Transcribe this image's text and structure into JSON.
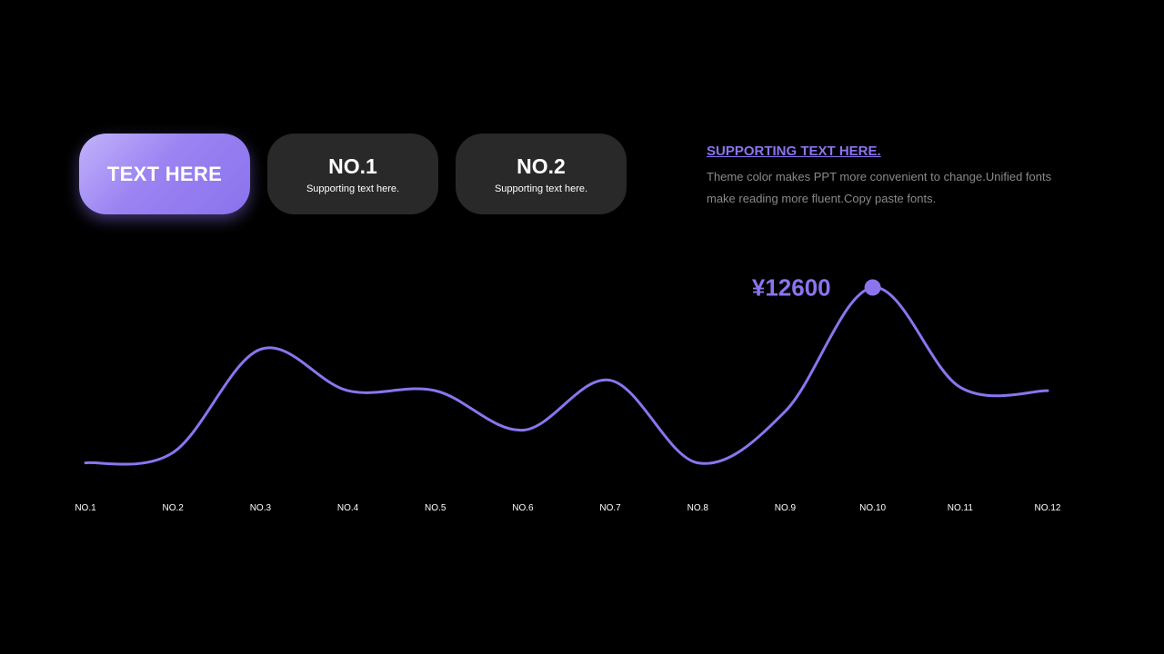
{
  "cards": {
    "primary": {
      "label": "TEXT HERE"
    },
    "no1": {
      "title": "NO.1",
      "subtitle": "Supporting text here."
    },
    "no2": {
      "title": "NO.2",
      "subtitle": "Supporting text here."
    }
  },
  "info": {
    "heading": "SUPPORTING TEXT HERE.",
    "body": "Theme color makes PPT more convenient to change.Unified fonts make reading more fluent.Copy paste fonts."
  },
  "colors": {
    "accent": "#8c74ef",
    "card_dark": "#292929",
    "background": "#000000"
  },
  "chart_data": {
    "type": "line",
    "categories": [
      "NO.1",
      "NO.2",
      "NO.3",
      "NO.4",
      "NO.5",
      "NO.6",
      "NO.7",
      "NO.8",
      "NO.9",
      "NO.10",
      "NO.11",
      "NO.12"
    ],
    "series": [
      {
        "values": [
          2400,
          3000,
          9000,
          6600,
          6600,
          4300,
          7200,
          2400,
          5400,
          12600,
          6800,
          6600
        ]
      }
    ],
    "ylim": [
      0,
      14000
    ],
    "highlight": {
      "index": 9,
      "label": "¥12600"
    },
    "grid": false,
    "legend": "none"
  }
}
